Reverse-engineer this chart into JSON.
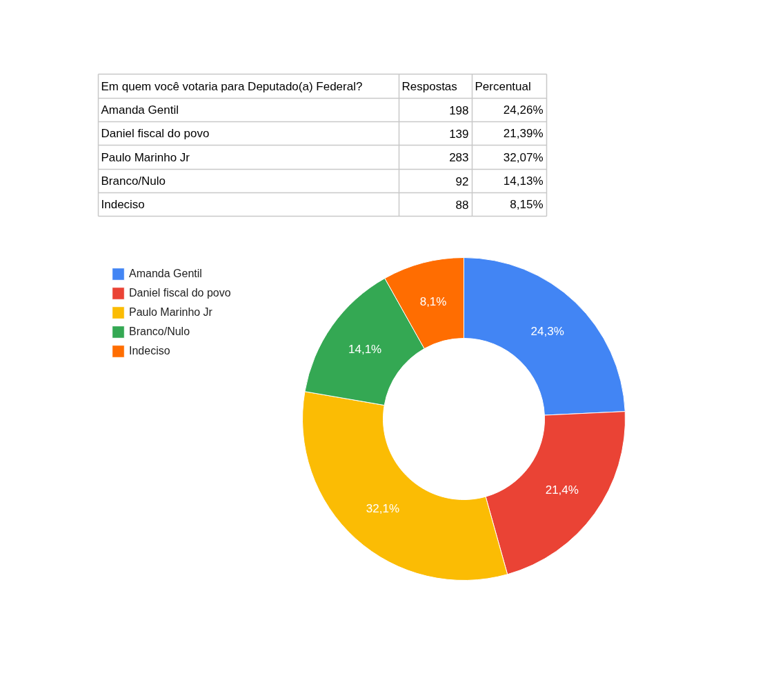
{
  "chart_data": {
    "type": "donut",
    "title": "Em quem você votaria para Deputado(a) Federal?",
    "categories": [
      "Amanda Gentil",
      "Daniel fiscal do povo",
      "Paulo Marinho Jr",
      "Branco/Nulo",
      "Indeciso"
    ],
    "values": [
      24.26,
      21.39,
      32.07,
      14.13,
      8.15
    ],
    "colors": [
      "#4285f4",
      "#ea4335",
      "#fbbc04",
      "#34a853",
      "#ff6d01"
    ],
    "value_labels": [
      "24,3%",
      "21,4%",
      "32,1%",
      "14,1%",
      "8,1%"
    ],
    "annotations": [
      "Respostas",
      "Percentual",
      "198",
      "24,26%",
      "139",
      "21,39%",
      "283",
      "32,07%",
      "92",
      "14,13%",
      "88",
      "8,15%"
    ],
    "legend": "top left"
  }
}
